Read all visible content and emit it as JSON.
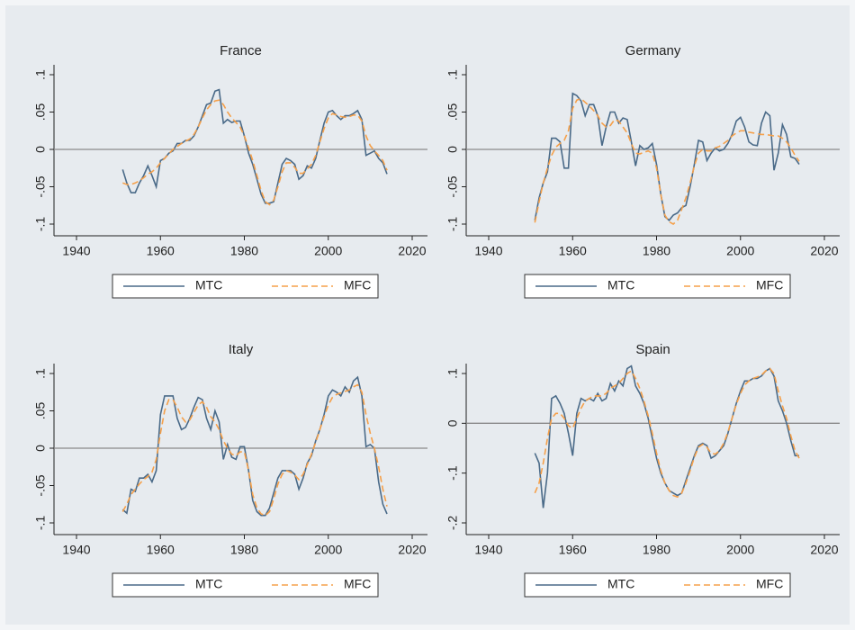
{
  "chart_data": [
    {
      "type": "line",
      "title": "France",
      "color_scheme": "s2color",
      "x": [
        1951,
        1952,
        1953,
        1954,
        1955,
        1956,
        1957,
        1958,
        1959,
        1960,
        1961,
        1962,
        1963,
        1964,
        1965,
        1966,
        1967,
        1968,
        1969,
        1970,
        1971,
        1972,
        1973,
        1974,
        1975,
        1976,
        1977,
        1978,
        1979,
        1980,
        1981,
        1982,
        1983,
        1984,
        1985,
        1986,
        1987,
        1988,
        1989,
        1990,
        1991,
        1992,
        1993,
        1994,
        1995,
        1996,
        1997,
        1998,
        1999,
        2000,
        2001,
        2002,
        2003,
        2004,
        2005,
        2006,
        2007,
        2008,
        2009,
        2010,
        2011,
        2012,
        2013,
        2014
      ],
      "series": [
        {
          "name": "MTC",
          "color": "#4a6a88",
          "dash": false,
          "values": [
            -0.027,
            -0.045,
            -0.058,
            -0.058,
            -0.045,
            -0.035,
            -0.022,
            -0.035,
            -0.05,
            -0.015,
            -0.012,
            -0.005,
            -0.002,
            0.008,
            0.008,
            0.012,
            0.012,
            0.018,
            0.03,
            0.045,
            0.06,
            0.062,
            0.078,
            0.08,
            0.035,
            0.04,
            0.036,
            0.038,
            0.038,
            0.018,
            -0.005,
            -0.02,
            -0.04,
            -0.06,
            -0.072,
            -0.072,
            -0.07,
            -0.045,
            -0.02,
            -0.012,
            -0.015,
            -0.02,
            -0.04,
            -0.035,
            -0.022,
            -0.025,
            -0.012,
            0.012,
            0.035,
            0.05,
            0.052,
            0.045,
            0.04,
            0.045,
            0.045,
            0.048,
            0.052,
            0.04,
            -0.008,
            -0.005,
            -0.002,
            -0.012,
            -0.018,
            -0.033
          ]
        },
        {
          "name": "MFC",
          "color": "#f5a04a",
          "dash": true,
          "values": [
            -0.045,
            -0.047,
            -0.047,
            -0.045,
            -0.042,
            -0.038,
            -0.033,
            -0.03,
            -0.025,
            -0.018,
            -0.012,
            -0.006,
            0,
            0.004,
            0.008,
            0.011,
            0.014,
            0.02,
            0.03,
            0.042,
            0.053,
            0.06,
            0.065,
            0.066,
            0.06,
            0.05,
            0.042,
            0.036,
            0.03,
            0.018,
            0.002,
            -0.015,
            -0.035,
            -0.055,
            -0.07,
            -0.074,
            -0.068,
            -0.05,
            -0.03,
            -0.018,
            -0.018,
            -0.024,
            -0.032,
            -0.032,
            -0.026,
            -0.02,
            -0.008,
            0.01,
            0.028,
            0.042,
            0.048,
            0.046,
            0.044,
            0.043,
            0.044,
            0.046,
            0.046,
            0.038,
            0.018,
            0.005,
            -0.002,
            -0.008,
            -0.015,
            -0.028
          ]
        }
      ],
      "xlim": [
        1940,
        2020
      ],
      "xticks": [
        1940,
        1960,
        1980,
        2000,
        2020
      ],
      "ylim": [
        -0.1,
        0.1
      ],
      "yticks": [
        {
          "value": -0.1,
          "label": "-.1"
        },
        {
          "value": -0.05,
          "label": "-.05"
        },
        0,
        {
          "value": 0.05,
          "label": ".05"
        },
        {
          "value": 0.1,
          "label": ".1"
        }
      ],
      "hline": 0,
      "legend": "bottom"
    },
    {
      "type": "line",
      "title": "Germany",
      "x": [
        1951,
        1952,
        1953,
        1954,
        1955,
        1956,
        1957,
        1958,
        1959,
        1960,
        1961,
        1962,
        1963,
        1964,
        1965,
        1966,
        1967,
        1968,
        1969,
        1970,
        1971,
        1972,
        1973,
        1974,
        1975,
        1976,
        1977,
        1978,
        1979,
        1980,
        1981,
        1982,
        1983,
        1984,
        1985,
        1986,
        1987,
        1988,
        1989,
        1990,
        1991,
        1992,
        1993,
        1994,
        1995,
        1996,
        1997,
        1998,
        1999,
        2000,
        2001,
        2002,
        2003,
        2004,
        2005,
        2006,
        2007,
        2008,
        2009,
        2010,
        2011,
        2012,
        2013,
        2014
      ],
      "series": [
        {
          "name": "MTC",
          "color": "#4a6a88",
          "dash": false,
          "values": [
            -0.095,
            -0.065,
            -0.045,
            -0.03,
            0.015,
            0.015,
            0.01,
            -0.025,
            -0.025,
            0.075,
            0.072,
            0.065,
            0.045,
            0.06,
            0.06,
            0.045,
            0.005,
            0.03,
            0.05,
            0.05,
            0.035,
            0.042,
            0.04,
            0.01,
            -0.022,
            0.005,
            0,
            0.002,
            0.008,
            -0.02,
            -0.06,
            -0.09,
            -0.095,
            -0.088,
            -0.085,
            -0.078,
            -0.075,
            -0.05,
            -0.02,
            0.012,
            0.01,
            -0.015,
            -0.005,
            0.002,
            -0.002,
            0,
            0.008,
            0.02,
            0.038,
            0.043,
            0.03,
            0.01,
            0.006,
            0.005,
            0.035,
            0.05,
            0.045,
            -0.028,
            -0.005,
            0.033,
            0.02,
            -0.01,
            -0.012,
            -0.02
          ]
        },
        {
          "name": "MFC",
          "color": "#f5a04a",
          "dash": true,
          "values": [
            -0.098,
            -0.07,
            -0.045,
            -0.025,
            -0.008,
            0.003,
            0.008,
            0.012,
            0.025,
            0.055,
            0.066,
            0.068,
            0.063,
            0.058,
            0.052,
            0.045,
            0.035,
            0.03,
            0.032,
            0.04,
            0.038,
            0.03,
            0.022,
            0.008,
            -0.005,
            -0.006,
            -0.004,
            -0.002,
            -0.005,
            -0.025,
            -0.06,
            -0.088,
            -0.097,
            -0.1,
            -0.095,
            -0.08,
            -0.065,
            -0.045,
            -0.022,
            -0.005,
            0,
            -0.002,
            -0.002,
            0.002,
            0.004,
            0.008,
            0.012,
            0.018,
            0.022,
            0.025,
            0.025,
            0.023,
            0.022,
            0.021,
            0.02,
            0.02,
            0.019,
            0.018,
            0.018,
            0.015,
            0.01,
            0.002,
            -0.008,
            -0.016
          ]
        }
      ],
      "xlim": [
        1940,
        2020
      ],
      "xticks": [
        1940,
        1960,
        1980,
        2000,
        2020
      ],
      "ylim": [
        -0.1,
        0.1
      ],
      "yticks": [
        {
          "value": -0.1,
          "label": "-.1"
        },
        {
          "value": -0.05,
          "label": "-.05"
        },
        0,
        {
          "value": 0.05,
          "label": ".05"
        },
        {
          "value": 0.1,
          "label": ".1"
        }
      ],
      "hline": 0,
      "legend": "bottom"
    },
    {
      "type": "line",
      "title": "Italy",
      "x": [
        1951,
        1952,
        1953,
        1954,
        1955,
        1956,
        1957,
        1958,
        1959,
        1960,
        1961,
        1962,
        1963,
        1964,
        1965,
        1966,
        1967,
        1968,
        1969,
        1970,
        1971,
        1972,
        1973,
        1974,
        1975,
        1976,
        1977,
        1978,
        1979,
        1980,
        1981,
        1982,
        1983,
        1984,
        1985,
        1986,
        1987,
        1988,
        1989,
        1990,
        1991,
        1992,
        1993,
        1994,
        1995,
        1996,
        1997,
        1998,
        1999,
        2000,
        2001,
        2002,
        2003,
        2004,
        2005,
        2006,
        2007,
        2008,
        2009,
        2010,
        2011,
        2012,
        2013,
        2014
      ],
      "series": [
        {
          "name": "MTC",
          "color": "#4a6a88",
          "dash": false,
          "values": [
            -0.082,
            -0.087,
            -0.055,
            -0.058,
            -0.04,
            -0.04,
            -0.035,
            -0.045,
            -0.03,
            0.045,
            0.07,
            0.07,
            0.07,
            0.04,
            0.025,
            0.028,
            0.04,
            0.055,
            0.068,
            0.065,
            0.04,
            0.025,
            0.05,
            0.035,
            -0.015,
            0.005,
            -0.012,
            -0.015,
            0.002,
            0.002,
            -0.03,
            -0.07,
            -0.085,
            -0.09,
            -0.09,
            -0.08,
            -0.06,
            -0.04,
            -0.03,
            -0.03,
            -0.03,
            -0.035,
            -0.055,
            -0.04,
            -0.02,
            -0.01,
            0.01,
            0.025,
            0.045,
            0.07,
            0.078,
            0.075,
            0.07,
            0.082,
            0.075,
            0.09,
            0.095,
            0.07,
            0.002,
            0.005,
            0,
            -0.045,
            -0.075,
            -0.088
          ]
        },
        {
          "name": "MFC",
          "color": "#f5a04a",
          "dash": true,
          "values": [
            -0.085,
            -0.075,
            -0.062,
            -0.055,
            -0.048,
            -0.042,
            -0.038,
            -0.032,
            -0.015,
            0.02,
            0.05,
            0.065,
            0.065,
            0.055,
            0.042,
            0.035,
            0.038,
            0.048,
            0.058,
            0.062,
            0.055,
            0.042,
            0.035,
            0.025,
            0.01,
            0,
            -0.008,
            -0.01,
            -0.005,
            -0.005,
            -0.03,
            -0.062,
            -0.08,
            -0.088,
            -0.09,
            -0.085,
            -0.068,
            -0.048,
            -0.035,
            -0.03,
            -0.032,
            -0.036,
            -0.042,
            -0.035,
            -0.022,
            -0.008,
            0.008,
            0.025,
            0.042,
            0.058,
            0.068,
            0.072,
            0.074,
            0.076,
            0.078,
            0.082,
            0.085,
            0.075,
            0.045,
            0.02,
            0,
            -0.025,
            -0.055,
            -0.078
          ]
        }
      ],
      "xlim": [
        1940,
        2020
      ],
      "xticks": [
        1940,
        1960,
        1980,
        2000,
        2020
      ],
      "ylim": [
        -0.1,
        0.1
      ],
      "yticks": [
        {
          "value": -0.1,
          "label": "-.1"
        },
        {
          "value": -0.05,
          "label": "-.05"
        },
        0,
        {
          "value": 0.05,
          "label": ".05"
        },
        {
          "value": 0.1,
          "label": ".1"
        }
      ],
      "hline": 0,
      "legend": "bottom"
    },
    {
      "type": "line",
      "title": "Spain",
      "x": [
        1951,
        1952,
        1953,
        1954,
        1955,
        1956,
        1957,
        1958,
        1959,
        1960,
        1961,
        1962,
        1963,
        1964,
        1965,
        1966,
        1967,
        1968,
        1969,
        1970,
        1971,
        1972,
        1973,
        1974,
        1975,
        1976,
        1977,
        1978,
        1979,
        1980,
        1981,
        1982,
        1983,
        1984,
        1985,
        1986,
        1987,
        1988,
        1989,
        1990,
        1991,
        1992,
        1993,
        1994,
        1995,
        1996,
        1997,
        1998,
        1999,
        2000,
        2001,
        2002,
        2003,
        2004,
        2005,
        2006,
        2007,
        2008,
        2009,
        2010,
        2011,
        2012,
        2013,
        2014
      ],
      "series": [
        {
          "name": "MTC",
          "color": "#4a6a88",
          "dash": false,
          "values": [
            -0.06,
            -0.08,
            -0.17,
            -0.1,
            0.05,
            0.055,
            0.04,
            0.02,
            -0.02,
            -0.065,
            0.02,
            0.05,
            0.045,
            0.05,
            0.045,
            0.06,
            0.045,
            0.05,
            0.08,
            0.065,
            0.085,
            0.075,
            0.11,
            0.115,
            0.075,
            0.06,
            0.04,
            0.01,
            -0.03,
            -0.07,
            -0.1,
            -0.12,
            -0.135,
            -0.14,
            -0.145,
            -0.14,
            -0.115,
            -0.09,
            -0.065,
            -0.045,
            -0.04,
            -0.045,
            -0.07,
            -0.065,
            -0.055,
            -0.045,
            -0.02,
            0.01,
            0.04,
            0.065,
            0.085,
            0.085,
            0.09,
            0.09,
            0.095,
            0.105,
            0.11,
            0.095,
            0.045,
            0.025,
            0,
            -0.035,
            -0.065,
            -0.065
          ]
        },
        {
          "name": "MFC",
          "color": "#f5a04a",
          "dash": true,
          "values": [
            -0.14,
            -0.12,
            -0.08,
            -0.03,
            0.01,
            0.02,
            0.02,
            0.01,
            -0.005,
            -0.01,
            0.01,
            0.03,
            0.045,
            0.05,
            0.055,
            0.055,
            0.055,
            0.06,
            0.07,
            0.075,
            0.08,
            0.09,
            0.1,
            0.105,
            0.09,
            0.07,
            0.045,
            0.015,
            -0.02,
            -0.06,
            -0.095,
            -0.12,
            -0.135,
            -0.145,
            -0.148,
            -0.14,
            -0.12,
            -0.095,
            -0.068,
            -0.048,
            -0.042,
            -0.048,
            -0.06,
            -0.062,
            -0.055,
            -0.04,
            -0.018,
            0.01,
            0.038,
            0.06,
            0.077,
            0.085,
            0.09,
            0.093,
            0.097,
            0.105,
            0.11,
            0.1,
            0.065,
            0.035,
            0.01,
            -0.025,
            -0.055,
            -0.07
          ]
        }
      ],
      "xlim": [
        1940,
        2020
      ],
      "xticks": [
        1940,
        1960,
        1980,
        2000,
        2020
      ],
      "ylim": [
        -0.2,
        0.1
      ],
      "yticks": [
        {
          "value": -0.2,
          "label": "-.2"
        },
        {
          "value": -0.1,
          "label": "-.1"
        },
        0,
        {
          "value": 0.1,
          "label": ".1"
        }
      ],
      "hline": 0,
      "legend": "bottom"
    }
  ]
}
